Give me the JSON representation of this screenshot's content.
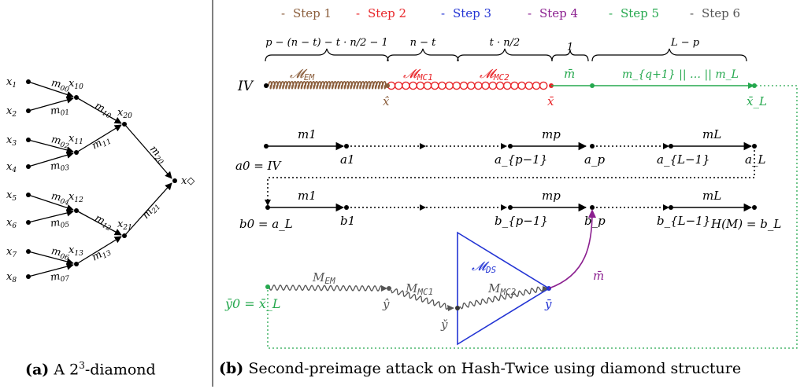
{
  "colors": {
    "step1": "#8b5e3c",
    "step2": "#e8262a",
    "step3": "#2334d4",
    "step4": "#8b1f8f",
    "step5": "#25a84e",
    "step6": "#555555",
    "black": "#000000"
  },
  "legend": [
    {
      "label": "Step 1",
      "color_key": "step1"
    },
    {
      "label": "Step 2",
      "color_key": "step2"
    },
    {
      "label": "Step 3",
      "color_key": "step3"
    },
    {
      "label": "Step 4",
      "color_key": "step4"
    },
    {
      "label": "Step 5",
      "color_key": "step5"
    },
    {
      "label": "Step 6",
      "color_key": "step6"
    }
  ],
  "diamond": {
    "leaves": [
      "x1",
      "x2",
      "x3",
      "x4",
      "x5",
      "x6",
      "x7",
      "x8"
    ],
    "level1_nodes": [
      "x10",
      "x11",
      "x12",
      "x13"
    ],
    "level2_nodes": [
      "x20",
      "x21"
    ],
    "root": "x◇",
    "edge_labels_level0": [
      "m00",
      "m01",
      "m02",
      "m03",
      "m04",
      "m05",
      "m06",
      "m07"
    ],
    "edge_labels_level1": [
      "m10",
      "m11",
      "m12",
      "m13"
    ],
    "edge_labels_level2": [
      "m20",
      "m21"
    ]
  },
  "brace_labels": [
    "p − (n − t) − t · n/2 − 1",
    "n − t",
    "t · n/2",
    "1",
    "L − p"
  ],
  "row1": {
    "start": "IV",
    "seg_em": "M_EM",
    "seg_mc1": "M_MC1",
    "seg_mc2": "M_MC2",
    "bar_m": "m̄",
    "tail": "m_{q+1} || … || m_L",
    "x_hat": "x̂",
    "x_bar": "x̄",
    "x_bar_L": "x̄_L"
  },
  "row2": {
    "start": "a0 = IV",
    "nodes": [
      "a1",
      "a_{p−1}",
      "a_p",
      "a_{L−1}",
      "a_L"
    ],
    "edge_labels": [
      "m1",
      "mp",
      "mL"
    ]
  },
  "row3": {
    "start": "b0 = a_L",
    "nodes": [
      "b1",
      "b_{p−1}",
      "b_p",
      "b_{L−1}"
    ],
    "final": "H(M) = b_L",
    "edge_labels": [
      "m1",
      "mp",
      "mL"
    ]
  },
  "row4": {
    "start_left": "ȳ0 = x̄_L",
    "em": "M_EM",
    "mc1": "M_MC1",
    "mc2": "M_MC2",
    "ds": "M_DS",
    "y_hat": "ŷ",
    "y_check": "y̌",
    "y_bar": "ȳ",
    "m_bar": "m̄"
  },
  "captions": {
    "a_tag": "(a)",
    "a_text": "A 2",
    "a_sup": "3",
    "a_tail": "-diamond",
    "b_tag": "(b)",
    "b_text": "Second-preimage attack on Hash-Twice using diamond structure"
  }
}
